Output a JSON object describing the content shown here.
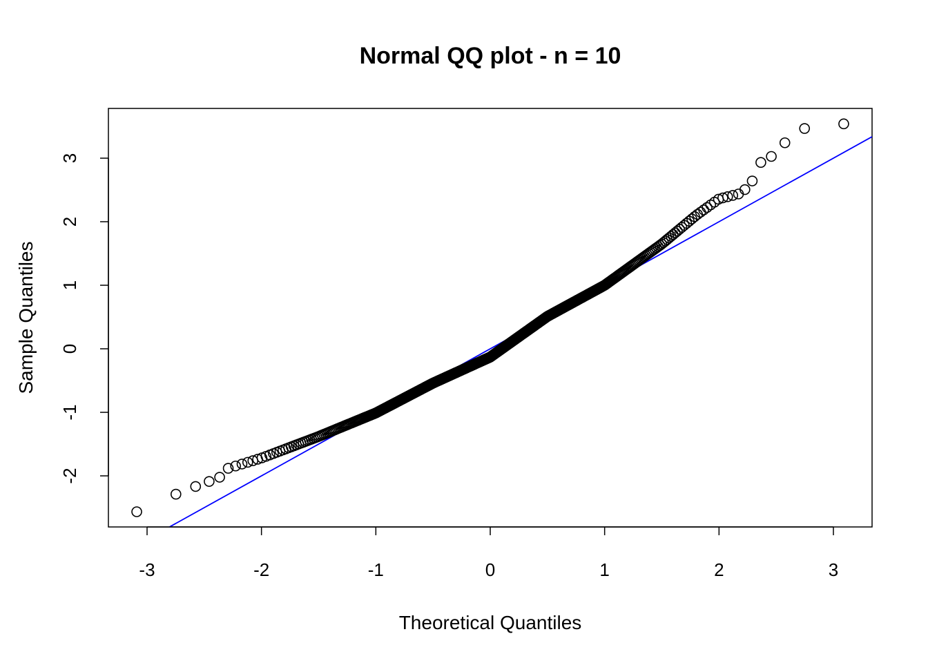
{
  "chart_data": {
    "type": "scatter",
    "title": "Normal QQ plot - n = 10",
    "xlabel": "Theoretical Quantiles",
    "ylabel": "Sample Quantiles",
    "xlim": [
      -3.338,
      3.338
    ],
    "ylim": [
      -2.804,
      3.783
    ],
    "x_ticks": [
      -3,
      -2,
      -1,
      0,
      1,
      2,
      3
    ],
    "x_tick_labels": [
      "-3",
      "-2",
      "-1",
      "0",
      "1",
      "2",
      "3"
    ],
    "y_ticks": [
      -2,
      -1,
      0,
      1,
      2,
      3
    ],
    "y_tick_labels": [
      "-2",
      "-1",
      "0",
      "1",
      "2",
      "3"
    ],
    "grid": false,
    "n_points": 500,
    "sample_quantile_curve": [
      [
        -3.09,
        -2.565
      ],
      [
        -2.75,
        -2.29
      ],
      [
        -2.58,
        -2.17
      ],
      [
        -2.46,
        -2.09
      ],
      [
        -2.37,
        -2.03
      ],
      [
        -2.29,
        -1.88
      ],
      [
        -2.0,
        -1.72
      ],
      [
        -1.5,
        -1.38
      ],
      [
        -1.0,
        -1.01
      ],
      [
        -0.5,
        -0.54
      ],
      [
        0.0,
        -0.13
      ],
      [
        0.5,
        0.51
      ],
      [
        1.0,
        1.0
      ],
      [
        1.5,
        1.65
      ],
      [
        1.8,
        2.1
      ],
      [
        2.0,
        2.36
      ],
      [
        2.2,
        2.45
      ],
      [
        2.29,
        2.64
      ],
      [
        2.37,
        2.95
      ],
      [
        2.46,
        3.03
      ],
      [
        2.58,
        3.25
      ],
      [
        2.75,
        3.47
      ],
      [
        3.09,
        3.54
      ]
    ],
    "reference_line": {
      "intercept": 0.0,
      "slope": 1.0,
      "color": "#0000ff"
    },
    "point_style": {
      "shape": "open-circle",
      "color": "#000000"
    }
  }
}
